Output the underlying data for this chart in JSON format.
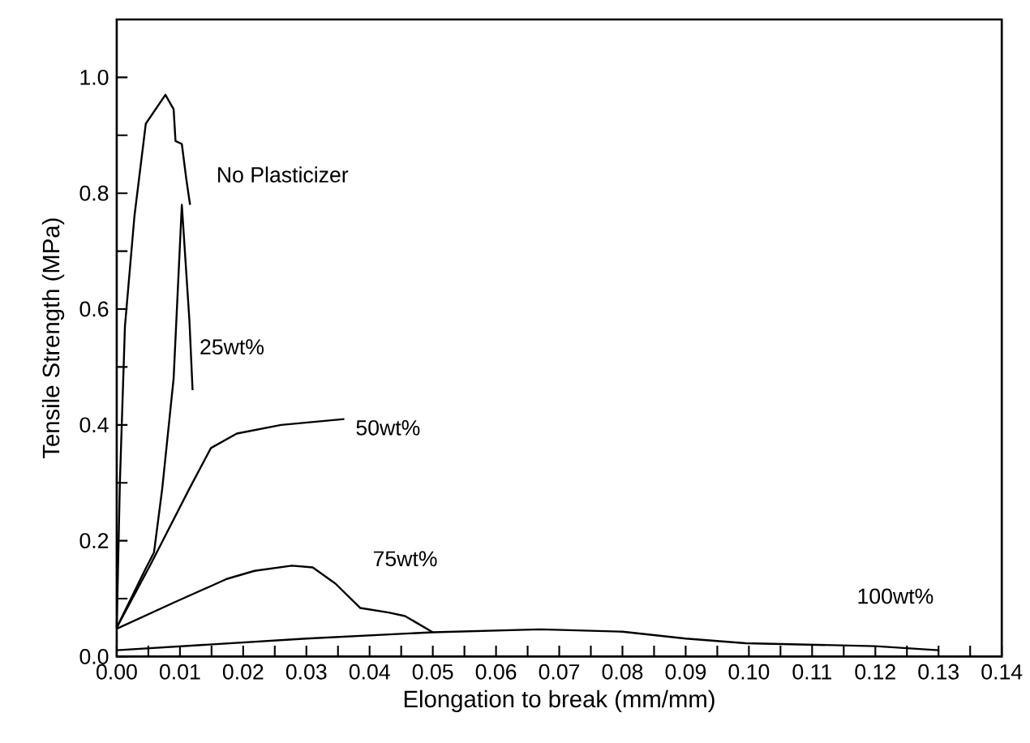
{
  "chart_data": {
    "type": "line",
    "xlabel": "Elongation to break (mm/mm)",
    "ylabel": "Tensile Strength (MPa)",
    "series": [
      {
        "name": "No Plasticizer",
        "color": "#000000",
        "x": [
          0,
          0.0005,
          0.0013,
          0.0028,
          0.0046,
          0.0077,
          0.009,
          0.0093,
          0.0103,
          0.011,
          0.0116
        ],
        "values": [
          0.05,
          0.3,
          0.57,
          0.76,
          0.92,
          0.97,
          0.945,
          0.89,
          0.885,
          0.825,
          0.78
        ]
      },
      {
        "name": "25wt%",
        "color": "#000000",
        "x": [
          0,
          0.0045,
          0.0059,
          0.0072,
          0.009,
          0.0103,
          0.0115,
          0.012
        ],
        "values": [
          0.05,
          0.15,
          0.18,
          0.29,
          0.48,
          0.78,
          0.58,
          0.46
        ]
      },
      {
        "name": "50wt%",
        "color": "#000000",
        "x": [
          0,
          0.0054,
          0.0115,
          0.0149,
          0.019,
          0.026,
          0.031,
          0.036
        ],
        "values": [
          0.05,
          0.16,
          0.29,
          0.36,
          0.385,
          0.4,
          0.405,
          0.41
        ]
      },
      {
        "name": "75wt%",
        "color": "#000000",
        "x": [
          0,
          0.009,
          0.0174,
          0.0218,
          0.0277,
          0.031,
          0.0346,
          0.0385,
          0.043,
          0.0456,
          0.05
        ],
        "values": [
          0.048,
          0.093,
          0.134,
          0.148,
          0.157,
          0.154,
          0.126,
          0.084,
          0.076,
          0.07,
          0.042
        ]
      },
      {
        "name": "100wt%",
        "color": "#000000",
        "x": [
          0,
          0.03,
          0.05,
          0.067,
          0.08,
          0.09,
          0.0995,
          0.12,
          0.13
        ],
        "values": [
          0.011,
          0.031,
          0.042,
          0.047,
          0.043,
          0.031,
          0.023,
          0.018,
          0.011
        ]
      }
    ],
    "xlim": [
      0,
      0.14
    ],
    "xticks": [
      {
        "value": 0,
        "label": "0.00"
      },
      {
        "value": 0.005,
        "label": null
      },
      {
        "value": 0.01,
        "label": "0.01"
      },
      {
        "value": 0.015,
        "label": null
      },
      {
        "value": 0.02,
        "label": "0.02"
      },
      {
        "value": 0.025,
        "label": null
      },
      {
        "value": 0.03,
        "label": "0.03"
      },
      {
        "value": 0.035,
        "label": null
      },
      {
        "value": 0.04,
        "label": "0.04"
      },
      {
        "value": 0.045,
        "label": null
      },
      {
        "value": 0.05,
        "label": "0.05"
      },
      {
        "value": 0.055,
        "label": null
      },
      {
        "value": 0.06,
        "label": "0.06"
      },
      {
        "value": 0.065,
        "label": null
      },
      {
        "value": 0.07,
        "label": "0.07"
      },
      {
        "value": 0.075,
        "label": null
      },
      {
        "value": 0.08,
        "label": "0.08"
      },
      {
        "value": 0.085,
        "label": null
      },
      {
        "value": 0.09,
        "label": "0.09"
      },
      {
        "value": 0.095,
        "label": null
      },
      {
        "value": 0.1,
        "label": "0.10"
      },
      {
        "value": 0.105,
        "label": null
      },
      {
        "value": 0.11,
        "label": "0.11"
      },
      {
        "value": 0.115,
        "label": null
      },
      {
        "value": 0.12,
        "label": "0.12"
      },
      {
        "value": 0.125,
        "label": null
      },
      {
        "value": 0.13,
        "label": "0.13"
      },
      {
        "value": 0.135,
        "label": null
      },
      {
        "value": 0.14,
        "label": "0.14"
      }
    ],
    "ylim": [
      0,
      1.1
    ],
    "yticks": [
      {
        "value": 0,
        "label": "0.0"
      },
      {
        "value": 0.1,
        "label": null
      },
      {
        "value": 0.2,
        "label": "0.2"
      },
      {
        "value": 0.3,
        "label": null
      },
      {
        "value": 0.4,
        "label": "0.4"
      },
      {
        "value": 0.5,
        "label": null
      },
      {
        "value": 0.6,
        "label": "0.6"
      },
      {
        "value": 0.7,
        "label": null
      },
      {
        "value": 0.8,
        "label": "0.8"
      },
      {
        "value": 0.9,
        "label": null
      },
      {
        "value": 1.0,
        "label": "1.0"
      }
    ],
    "grid": false,
    "legend": false,
    "marker": "none",
    "line_style": "solid"
  }
}
